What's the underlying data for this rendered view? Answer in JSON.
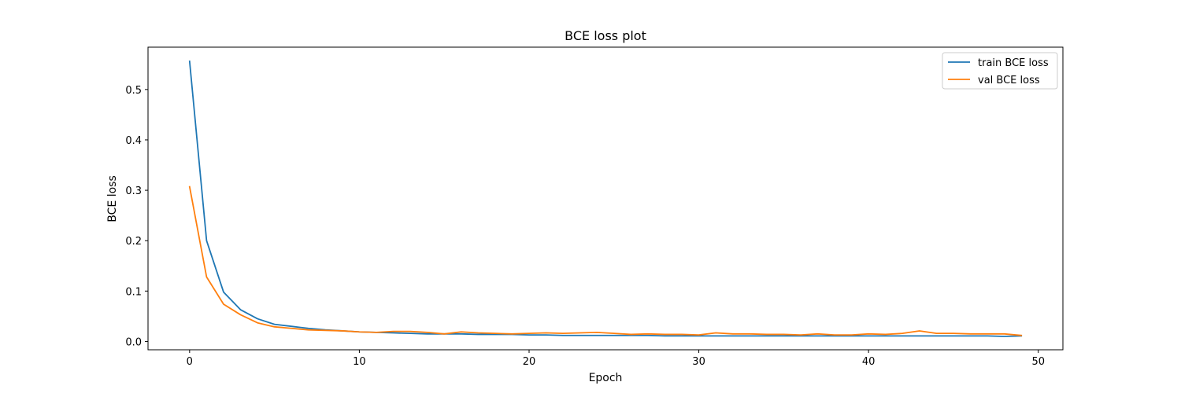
{
  "chart_data": {
    "type": "line",
    "title": "BCE loss plot",
    "xlabel": "Epoch",
    "ylabel": "BCE loss",
    "xlim": [
      -2.45,
      51.45
    ],
    "ylim": [
      -0.0165,
      0.584
    ],
    "xticks": [
      0,
      10,
      20,
      30,
      40,
      50
    ],
    "yticks": [
      0.0,
      0.1,
      0.2,
      0.3,
      0.4,
      0.5
    ],
    "xtick_labels": [
      "0",
      "10",
      "20",
      "30",
      "40",
      "50"
    ],
    "ytick_labels": [
      "0.0",
      "0.1",
      "0.2",
      "0.3",
      "0.4",
      "0.5"
    ],
    "grid": false,
    "legend_position": "top-right",
    "x": [
      0,
      1,
      2,
      3,
      4,
      5,
      6,
      7,
      8,
      9,
      10,
      11,
      12,
      13,
      14,
      15,
      16,
      17,
      18,
      19,
      20,
      21,
      22,
      23,
      24,
      25,
      26,
      27,
      28,
      29,
      30,
      31,
      32,
      33,
      34,
      35,
      36,
      37,
      38,
      39,
      40,
      41,
      42,
      43,
      44,
      45,
      46,
      47,
      48,
      49
    ],
    "series": [
      {
        "name": "train BCE loss",
        "color": "#1f77b4",
        "values": [
          0.556,
          0.2,
          0.098,
          0.063,
          0.045,
          0.034,
          0.03,
          0.026,
          0.023,
          0.021,
          0.019,
          0.018,
          0.017,
          0.016,
          0.015,
          0.015,
          0.015,
          0.014,
          0.014,
          0.014,
          0.013,
          0.013,
          0.012,
          0.012,
          0.012,
          0.012,
          0.012,
          0.012,
          0.011,
          0.011,
          0.011,
          0.011,
          0.011,
          0.011,
          0.011,
          0.011,
          0.011,
          0.011,
          0.011,
          0.011,
          0.011,
          0.011,
          0.011,
          0.011,
          0.011,
          0.011,
          0.011,
          0.011,
          0.01,
          0.011
        ]
      },
      {
        "name": "val BCE loss",
        "color": "#ff7f0e",
        "values": [
          0.307,
          0.128,
          0.074,
          0.053,
          0.037,
          0.029,
          0.026,
          0.023,
          0.022,
          0.021,
          0.019,
          0.018,
          0.02,
          0.02,
          0.018,
          0.015,
          0.019,
          0.017,
          0.016,
          0.015,
          0.016,
          0.017,
          0.016,
          0.017,
          0.018,
          0.016,
          0.014,
          0.015,
          0.014,
          0.014,
          0.013,
          0.017,
          0.015,
          0.015,
          0.014,
          0.014,
          0.013,
          0.015,
          0.013,
          0.013,
          0.015,
          0.014,
          0.016,
          0.021,
          0.016,
          0.016,
          0.015,
          0.015,
          0.015,
          0.012
        ]
      }
    ]
  }
}
